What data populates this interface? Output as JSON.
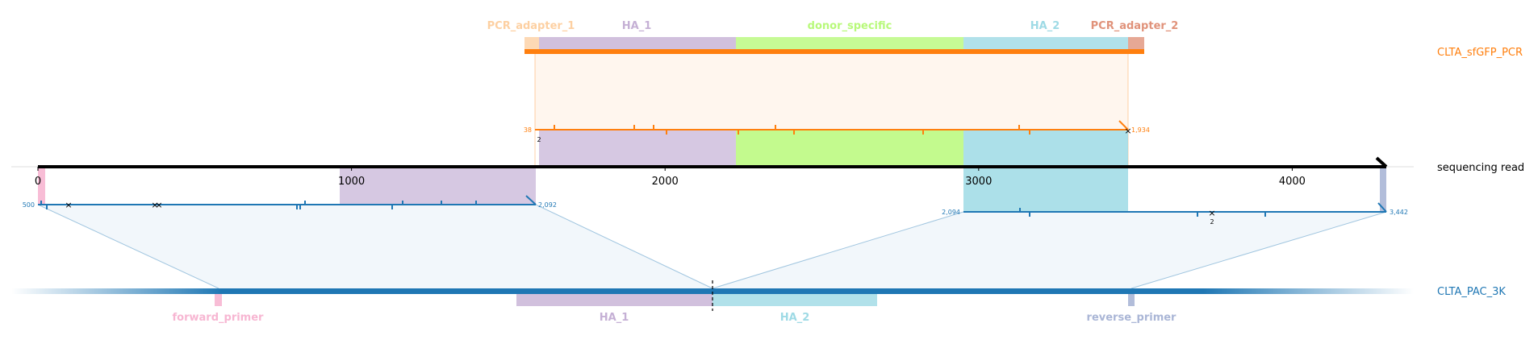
{
  "tracks": {
    "pcr": {
      "label": "CLTA_sfGFP_PCR",
      "color": "#ff7f0e"
    },
    "read": {
      "label": "sequencing read",
      "color": "#000000"
    },
    "genome": {
      "label": "CLTA_PAC_3K",
      "color": "#1f77b4"
    }
  },
  "pcr_features": [
    {
      "name": "PCR_adapter_1",
      "color": "#fdd0a2"
    },
    {
      "name": "HA_1",
      "color": "#c5b0d5"
    },
    {
      "name": "donor_specific",
      "color": "#b8f97a"
    },
    {
      "name": "HA_2",
      "color": "#9edae5"
    },
    {
      "name": "PCR_adapter_2",
      "color": "#e0927a"
    }
  ],
  "genome_features": [
    {
      "name": "forward_primer",
      "color": "#f7b6d2"
    },
    {
      "name": "HA_1",
      "color": "#c5b0d5"
    },
    {
      "name": "HA_2",
      "color": "#9edae5"
    },
    {
      "name": "reverse_primer",
      "color": "#aab6d6"
    }
  ],
  "read_axis": {
    "ticks": [
      0,
      1000,
      2000,
      3000,
      4000
    ],
    "min": 0,
    "max": 4300
  },
  "alignments": {
    "pcr": {
      "ref_start": "38",
      "ref_end": "1,934",
      "read_start": 1590,
      "read_end": 3500,
      "ins_count": "2"
    },
    "genome_left": {
      "ref_start": "500",
      "ref_end": "2,092",
      "read_start": 0,
      "read_end": 1590
    },
    "genome_right": {
      "ref_start": "2,094",
      "ref_end": "3,442",
      "read_start": 2960,
      "read_end": 4300,
      "ins_count": "2"
    }
  }
}
